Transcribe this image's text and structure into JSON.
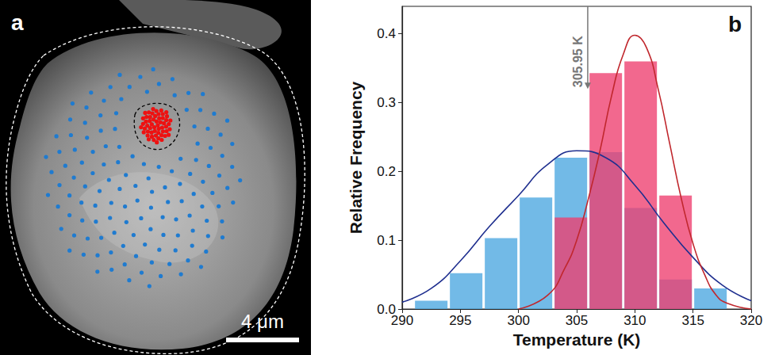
{
  "panel_a": {
    "label": "a",
    "scale_bar": "4 μm"
  },
  "chart_data": {
    "type": "histogram",
    "panel_label": "b",
    "x_label": "Temperature (K)",
    "y_label": "Relative Frequency",
    "xlim": [
      290,
      320
    ],
    "xticks": [
      290,
      295,
      300,
      305,
      310,
      315,
      320
    ],
    "ylim": [
      0,
      0.44
    ],
    "yticks": [
      {
        "value": 0,
        "label": "0.0"
      },
      0.1,
      0.2,
      0.3,
      0.4
    ],
    "grid": false,
    "series": [
      {
        "type": "histogram",
        "color": "#4aa6e0",
        "bins": [
          291,
          294,
          297,
          300,
          303,
          306,
          309,
          312,
          315,
          318
        ],
        "counts": [
          0.012,
          0.052,
          0.103,
          0.162,
          0.22,
          0.228,
          0.147,
          0.043,
          0.03
        ]
      },
      {
        "type": "histogram",
        "color": "#ee3e6e",
        "bins": [
          303,
          306,
          309,
          312,
          315
        ],
        "counts": [
          0.133,
          0.343,
          0.36,
          0.165
        ]
      },
      {
        "type": "line",
        "color": "#1f2f8f",
        "line_style": "solid",
        "x": [
          290,
          292.5,
          295,
          297.5,
          300,
          302.5,
          305,
          307.5,
          310,
          312.5,
          315,
          317.5,
          320
        ],
        "values": [
          0.01,
          0.03,
          0.07,
          0.12,
          0.165,
          0.21,
          0.23,
          0.22,
          0.18,
          0.125,
          0.075,
          0.035,
          0.012
        ]
      },
      {
        "type": "line",
        "color": "#c0272d",
        "line_style": "solid",
        "x": [
          300,
          302.5,
          304,
          305,
          306,
          307,
          308,
          309,
          310,
          311,
          312,
          313,
          314,
          315,
          316,
          317,
          318,
          320
        ],
        "values": [
          0.0,
          0.02,
          0.06,
          0.1,
          0.16,
          0.23,
          0.31,
          0.37,
          0.398,
          0.38,
          0.32,
          0.24,
          0.16,
          0.095,
          0.05,
          0.02,
          0.008,
          0.0
        ]
      }
    ],
    "annotation": {
      "text": "305.95 K",
      "x": 305.95,
      "y_start": 0.44,
      "y_end": 0.32
    }
  }
}
